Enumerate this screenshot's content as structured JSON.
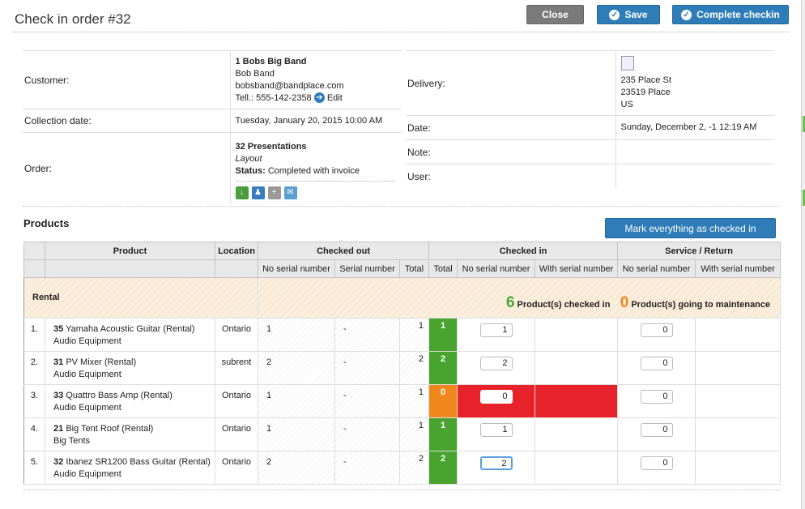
{
  "header": {
    "title": "Check in order #32",
    "close_label": "Close",
    "save_label": "Save",
    "complete_label": "Complete checkin"
  },
  "customer": {
    "label": "Customer:",
    "company": "1 Bobs Big Band",
    "name": "Bob Band",
    "email": "bobsband@bandplace.com",
    "phone": "Tell.: 555-142-2358",
    "edit_label": "Edit"
  },
  "collection": {
    "label": "Collection date:",
    "value": "Tuesday, January 20, 2015 10:00 AM"
  },
  "order": {
    "label": "Order:",
    "title": "32 Presentations",
    "layout": "Layout",
    "status_label": "Status:",
    "status_value": "Completed with invoice"
  },
  "delivery": {
    "label": "Delivery:",
    "line1": "235 Place St",
    "line2": "23519 Place",
    "line3": "US"
  },
  "date": {
    "label": "Date:",
    "value": "Sunday, December 2, -1 12:19 AM"
  },
  "note": {
    "label": "Note:"
  },
  "user": {
    "label": "User:"
  },
  "products": {
    "title": "Products",
    "mark_all_label": "Mark everything as checked in",
    "headers": {
      "product": "Product",
      "location": "Location",
      "checked_out": "Checked out",
      "checked_in": "Checked in",
      "service_return": "Service / Return",
      "no_serial": "No serial number",
      "serial": "Serial number",
      "total": "Total",
      "with_serial": "With serial number"
    },
    "group": {
      "label": "Rental",
      "checked_in_count": "6",
      "checked_in_text": "Product(s) checked in",
      "maintenance_count": "0",
      "maintenance_text": "Product(s) going to maintenance"
    },
    "rows": [
      {
        "index": "1.",
        "id": "35",
        "name": "Yamaha Acoustic Guitar (Rental)",
        "category": "Audio Equipment",
        "location": "Ontario",
        "out_no_serial": "1",
        "out_serial": "-",
        "out_total": "1",
        "in_total": "1",
        "in_no_serial": "1",
        "svc_no_serial": "0"
      },
      {
        "index": "2.",
        "id": "31",
        "name": "PV Mixer (Rental)",
        "category": "Audio Equipment",
        "location": "subrent",
        "out_no_serial": "2",
        "out_serial": "-",
        "out_total": "2",
        "in_total": "2",
        "in_no_serial": "2",
        "svc_no_serial": "0"
      },
      {
        "index": "3.",
        "id": "33",
        "name": "Quattro Bass Amp (Rental)",
        "category": "Audio Equipment",
        "location": "Ontario",
        "out_no_serial": "1",
        "out_serial": "-",
        "out_total": "1",
        "in_total": "0",
        "in_no_serial": "0",
        "svc_no_serial": "0"
      },
      {
        "index": "4.",
        "id": "21",
        "name": "Big Tent Roof (Rental)",
        "category": "Big Tents",
        "location": "Ontario",
        "out_no_serial": "1",
        "out_serial": "-",
        "out_total": "1",
        "in_total": "1",
        "in_no_serial": "1",
        "svc_no_serial": "0"
      },
      {
        "index": "5.",
        "id": "32",
        "name": "Ibanez SR1200 Bass Guitar (Rental)",
        "category": "Audio Equipment",
        "location": "Ontario",
        "out_no_serial": "2",
        "out_serial": "-",
        "out_total": "2",
        "in_total": "2",
        "in_no_serial": "2",
        "svc_no_serial": "0"
      }
    ]
  },
  "colors": {
    "primary": "#2e7db8",
    "close_gray": "#7a7a7a",
    "checked_green": "#48a32f",
    "pending_orange": "#f0871c",
    "error_red": "#e8222a"
  }
}
